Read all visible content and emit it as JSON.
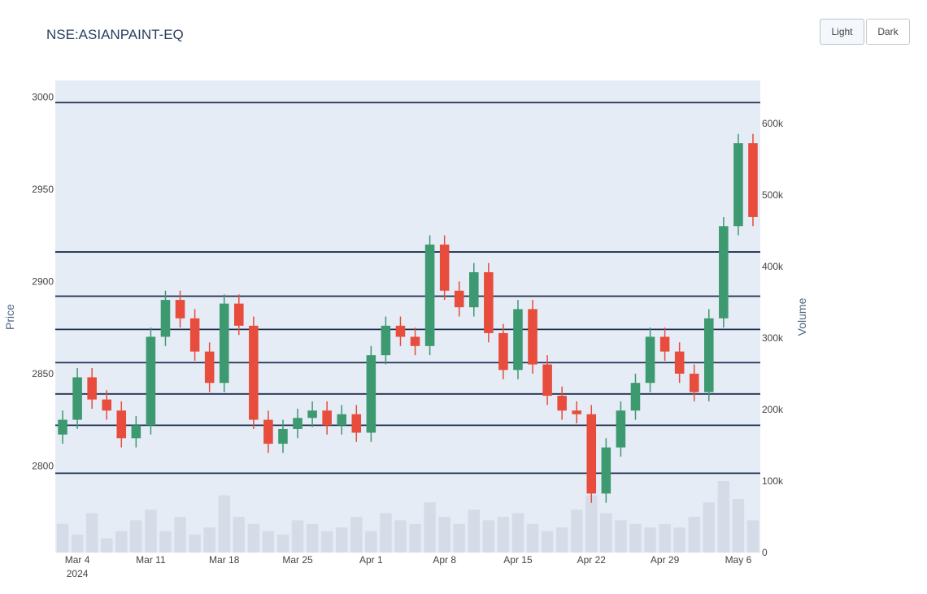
{
  "title": "NSE:ASIANPAINT-EQ",
  "buttons": {
    "light": "Light",
    "dark": "Dark"
  },
  "colors": {
    "plot_bg": "#e5ecf6",
    "increasing": "#3d9970",
    "decreasing": "#e74c3c",
    "level_line": "#1f2f4f",
    "volume": "#cfd6e2"
  },
  "chart_data": {
    "type": "candlestick",
    "title": "NSE:ASIANPAINT-EQ",
    "ylabel": "Price",
    "y2label": "Volume",
    "ylim": [
      2753,
      3009
    ],
    "y_ticks": [
      "2800",
      "2850",
      "2900",
      "2950",
      "3000"
    ],
    "y2lim": [
      0,
      660000
    ],
    "y2_ticks": [
      "0",
      "100k",
      "200k",
      "300k",
      "400k",
      "500k",
      "600k"
    ],
    "x_ticks": [
      "Mar 4",
      "Mar 11",
      "Mar 18",
      "Mar 25",
      "Apr 1",
      "Apr 8",
      "Apr 15",
      "Apr 22",
      "Apr 29",
      "May 6"
    ],
    "x_tick_year": "2024",
    "horizontal_levels": [
      2796,
      2822,
      2839,
      2856,
      2874,
      2892,
      2916,
      2997
    ],
    "series": [
      {
        "name": "Price",
        "x": [
          "Mar 1",
          "Mar 4",
          "Mar 5",
          "Mar 6",
          "Mar 7",
          "Mar 8",
          "Mar 11",
          "Mar 12",
          "Mar 13",
          "Mar 14",
          "Mar 15",
          "Mar 18",
          "Mar 19",
          "Mar 20",
          "Mar 21",
          "Mar 22",
          "Mar 25",
          "Mar 26",
          "Mar 27",
          "Mar 28",
          "Mar 29",
          "Apr 1",
          "Apr 2",
          "Apr 3",
          "Apr 4",
          "Apr 5",
          "Apr 8",
          "Apr 9",
          "Apr 10",
          "Apr 11",
          "Apr 12",
          "Apr 15",
          "Apr 16",
          "Apr 17",
          "Apr 18",
          "Apr 19",
          "Apr 22",
          "Apr 23",
          "Apr 24",
          "Apr 25",
          "Apr 26",
          "Apr 29",
          "Apr 30",
          "May 1",
          "May 2",
          "May 3",
          "May 6",
          "May 7"
        ],
        "values": [
          2825,
          2848,
          2836,
          2830,
          2815,
          2822,
          2870,
          2890,
          2880,
          2862,
          2845,
          2888,
          2876,
          2825,
          2812,
          2820,
          2826,
          2830,
          2822,
          2828,
          2818,
          2860,
          2876,
          2870,
          2865,
          2920,
          2895,
          2886,
          2905,
          2872,
          2852,
          2885,
          2855,
          2838,
          2830,
          2828,
          2785,
          2810,
          2830,
          2845,
          2870,
          2862,
          2850,
          2840,
          2880,
          2930,
          2975,
          2935
        ]
      },
      {
        "name": "Volume",
        "values": [
          40000,
          25000,
          55000,
          20000,
          30000,
          45000,
          60000,
          30000,
          50000,
          25000,
          35000,
          80000,
          50000,
          40000,
          30000,
          25000,
          45000,
          40000,
          30000,
          35000,
          50000,
          30000,
          55000,
          45000,
          40000,
          70000,
          50000,
          40000,
          60000,
          45000,
          50000,
          55000,
          40000,
          30000,
          35000,
          60000,
          80000,
          55000,
          45000,
          40000,
          35000,
          40000,
          35000,
          50000,
          70000,
          100000,
          75000,
          45000
        ]
      }
    ]
  }
}
